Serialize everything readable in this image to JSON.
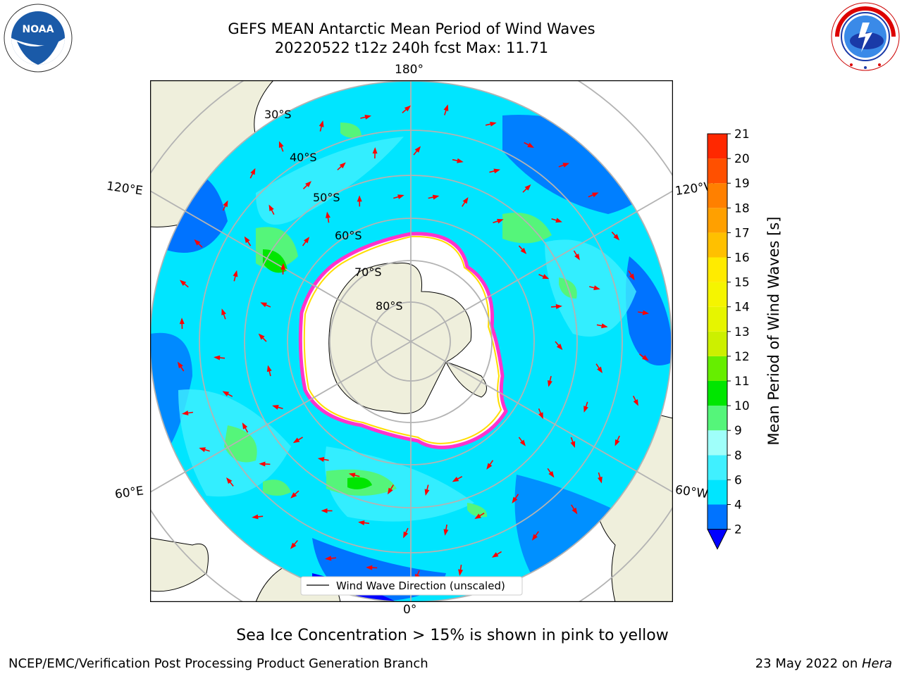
{
  "header": {
    "title_line1": "GEFS MEAN Antarctic Mean Period of Wind Waves",
    "title_line2": "20220522 t12z 240h fcst   Max: 11.71"
  },
  "logos": {
    "left": "noaa-logo",
    "left_text": "NOAA",
    "right": "national-weather-service-logo",
    "right_text": "NATIONAL WEATHER SERVICE"
  },
  "map": {
    "projection": "south-polar-stereographic",
    "lon_labels": {
      "top": "180°",
      "bottom": "0°",
      "left_upper": "120°E",
      "left_lower": "60°E",
      "right_upper": "120°W",
      "right_lower": "60°W"
    },
    "lat_labels": [
      "30°S",
      "40°S",
      "50°S",
      "60°S",
      "70°S",
      "80°S"
    ],
    "legend": "Wind Wave Direction (unscaled)",
    "colors": {
      "land": "#efefdc",
      "ice_shelf": "#ffffff",
      "ocean_default": "#00e5ff",
      "arrow": "#ff0000",
      "sea_ice_edge": "#ff33cc"
    }
  },
  "colorbar": {
    "label": "Mean Period of Wind Waves [s]",
    "ticks": [
      "2",
      "4",
      "6",
      "8",
      "9",
      "10",
      "11",
      "12",
      "13",
      "14",
      "15",
      "16",
      "17",
      "18",
      "19",
      "20",
      "21"
    ],
    "bins": [
      {
        "from": 2,
        "to": 4,
        "color": "#0073ff"
      },
      {
        "from": 4,
        "to": 6,
        "color": "#00e5ff"
      },
      {
        "from": 6,
        "to": 8,
        "color": "#40f0ff"
      },
      {
        "from": 8,
        "to": 9,
        "color": "#9ffffa"
      },
      {
        "from": 9,
        "to": 10,
        "color": "#55f57a"
      },
      {
        "from": 10,
        "to": 11,
        "color": "#00e600"
      },
      {
        "from": 11,
        "to": 12,
        "color": "#66ee00"
      },
      {
        "from": 12,
        "to": 13,
        "color": "#ccf000"
      },
      {
        "from": 13,
        "to": 14,
        "color": "#e6f500"
      },
      {
        "from": 14,
        "to": 15,
        "color": "#f5f500"
      },
      {
        "from": 15,
        "to": 16,
        "color": "#ffeb00"
      },
      {
        "from": 16,
        "to": 17,
        "color": "#ffc000"
      },
      {
        "from": 17,
        "to": 18,
        "color": "#ffa000"
      },
      {
        "from": 18,
        "to": 19,
        "color": "#ff8000"
      },
      {
        "from": 19,
        "to": 20,
        "color": "#ff5000"
      },
      {
        "from": 20,
        "to": 21,
        "color": "#ff2800"
      },
      {
        "from": 20.999,
        "to": 21,
        "color": "#ff0000"
      }
    ],
    "under_color": "#0000ff"
  },
  "footer": {
    "note": "Sea Ice Concentration > 15% is shown in pink to yellow",
    "credit_left": "NCEP/EMC/Verification Post Processing Product Generation Branch",
    "credit_right_date": "23 May 2022 on ",
    "credit_right_host": "Hera"
  }
}
